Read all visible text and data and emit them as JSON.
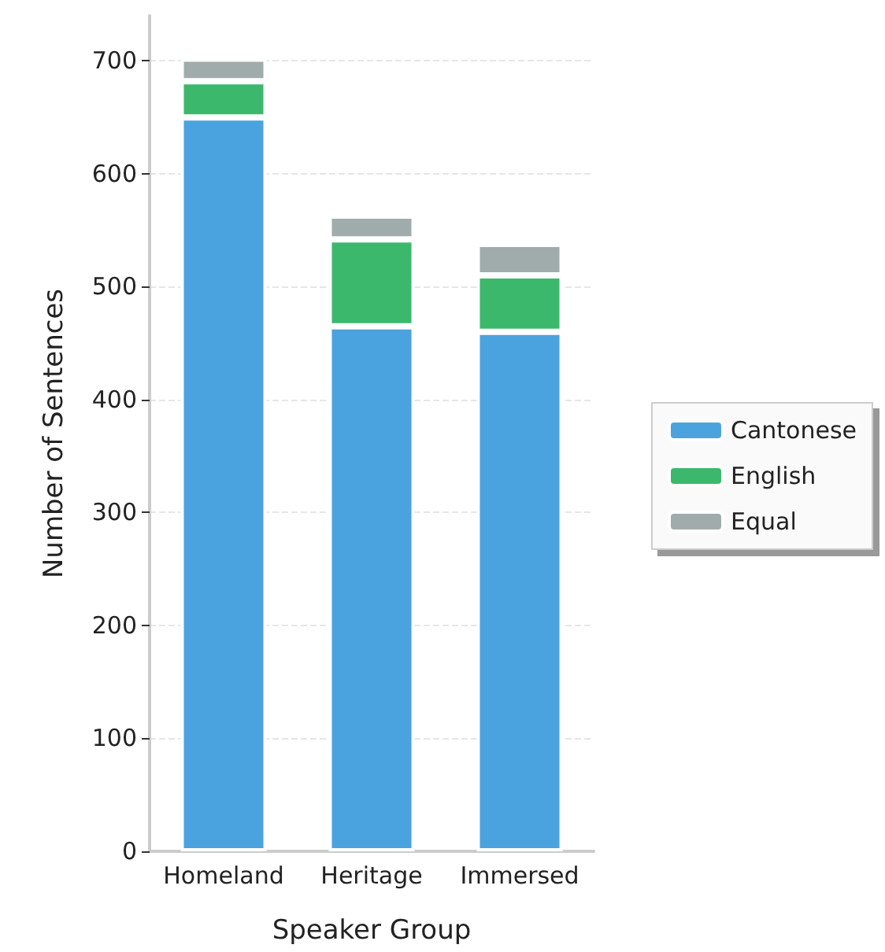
{
  "chart_data": {
    "type": "bar",
    "stacked": true,
    "xlabel": "Speaker Group",
    "ylabel": "Number of Sentences",
    "categories": [
      "Homeland",
      "Heritage",
      "Immersed"
    ],
    "series": [
      {
        "name": "Cantonese",
        "color": "#4aa3df",
        "values": [
          650,
          465,
          460
        ]
      },
      {
        "name": "English",
        "color": "#3cb86d",
        "values": [
          32,
          77,
          50
        ]
      },
      {
        "name": "Equal",
        "color": "#a0acac",
        "values": [
          20,
          21,
          28
        ]
      }
    ],
    "ylim": [
      0,
      740
    ],
    "yticks": [
      0,
      100,
      200,
      300,
      400,
      500,
      600,
      700
    ],
    "grid": "y",
    "legend": "right"
  }
}
